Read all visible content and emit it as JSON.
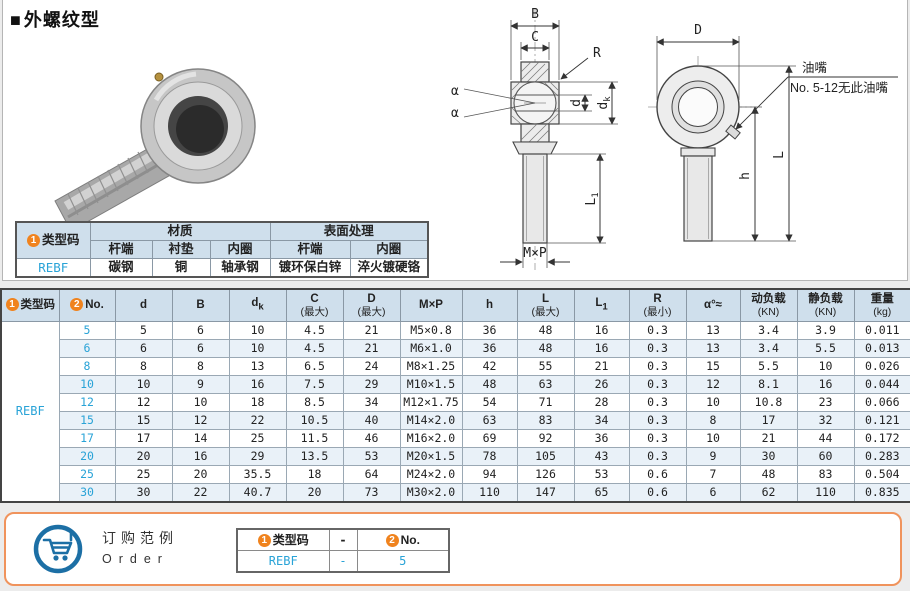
{
  "page": {
    "marker": "■",
    "title": "外螺纹型"
  },
  "material_table": {
    "badge": "1",
    "type_header": "类型码",
    "groups": {
      "material": "材质",
      "surface": "表面处理"
    },
    "sub_headers": [
      "杆端",
      "衬垫",
      "内圈",
      "杆端",
      "内圈"
    ],
    "type_code": "REBF",
    "values": [
      "碳钢",
      "铜",
      "轴承钢",
      "镀环保白锌",
      "淬火镀硬铬"
    ]
  },
  "diagram": {
    "b": "B",
    "c": "C",
    "r": "R",
    "d": "d",
    "dk_base": "d",
    "dk_sub": "k",
    "alpha1": "α",
    "alpha2": "α",
    "l1_base": "L",
    "l1_sub": "1",
    "mxp": "M×P",
    "D": "D",
    "h": "h",
    "L": "L",
    "grease": "油嘴",
    "grease_note": "No. 5-12无此油嘴"
  },
  "spec_table": {
    "badge1": "1",
    "badge2": "2",
    "headers": {
      "type_code": "类型码",
      "no": "No.",
      "d": "d",
      "b": "B",
      "dk_base": "d",
      "dk_sub": "k",
      "c_base": "C",
      "c_paren": "(最大)",
      "dm_base": "D",
      "dm_paren": "(最大)",
      "mxp": "M×P",
      "h": "h",
      "l_base": "L",
      "l_paren": "(最大)",
      "l1_base": "L",
      "l1_sub": "1",
      "r_base": "R",
      "r_paren": "(最小)",
      "alpha": "α°≈",
      "dyn_base": "动负载",
      "dyn_paren": "(KN)",
      "stat_base": "静负载",
      "stat_paren": "(KN)",
      "wt_base": "重量",
      "wt_paren": "(kg)"
    },
    "type_code": "REBF",
    "rows": [
      [
        "5",
        "5",
        "6",
        "10",
        "4.5",
        "21",
        "M5×0.8",
        "36",
        "48",
        "16",
        "0.3",
        "13",
        "3.4",
        "3.9",
        "0.011"
      ],
      [
        "6",
        "6",
        "6",
        "10",
        "4.5",
        "21",
        "M6×1.0",
        "36",
        "48",
        "16",
        "0.3",
        "13",
        "3.4",
        "5.5",
        "0.013"
      ],
      [
        "8",
        "8",
        "8",
        "13",
        "6.5",
        "24",
        "M8×1.25",
        "42",
        "55",
        "21",
        "0.3",
        "15",
        "5.5",
        "10",
        "0.026"
      ],
      [
        "10",
        "10",
        "9",
        "16",
        "7.5",
        "29",
        "M10×1.5",
        "48",
        "63",
        "26",
        "0.3",
        "12",
        "8.1",
        "16",
        "0.044"
      ],
      [
        "12",
        "12",
        "10",
        "18",
        "8.5",
        "34",
        "M12×1.75",
        "54",
        "71",
        "28",
        "0.3",
        "10",
        "10.8",
        "23",
        "0.066"
      ],
      [
        "15",
        "15",
        "12",
        "22",
        "10.5",
        "40",
        "M14×2.0",
        "63",
        "83",
        "34",
        "0.3",
        "8",
        "17",
        "32",
        "0.121"
      ],
      [
        "17",
        "17",
        "14",
        "25",
        "11.5",
        "46",
        "M16×2.0",
        "69",
        "92",
        "36",
        "0.3",
        "10",
        "21",
        "44",
        "0.172"
      ],
      [
        "20",
        "20",
        "16",
        "29",
        "13.5",
        "53",
        "M20×1.5",
        "78",
        "105",
        "43",
        "0.3",
        "9",
        "30",
        "60",
        "0.283"
      ],
      [
        "25",
        "25",
        "20",
        "35.5",
        "18",
        "64",
        "M24×2.0",
        "94",
        "126",
        "53",
        "0.6",
        "7",
        "48",
        "83",
        "0.504"
      ],
      [
        "30",
        "30",
        "22",
        "40.7",
        "20",
        "73",
        "M30×2.0",
        "110",
        "147",
        "65",
        "0.6",
        "6",
        "62",
        "110",
        "0.835"
      ]
    ]
  },
  "order": {
    "title_cn": "订购范例",
    "title_en": "Order",
    "badge1": "1",
    "badge2": "2",
    "col1": "类型码",
    "dash": "-",
    "col2": "No.",
    "val1": "REBF",
    "val_dash": "-",
    "val2": "5"
  },
  "colors": {
    "accent_orange": "#f0831e",
    "link_blue": "#29a3d7",
    "table_header_bg": "#cfdfec",
    "row_alt_bg": "#e9f1f8",
    "order_border": "#f0935c",
    "cart_blue": "#1c6fa5"
  }
}
